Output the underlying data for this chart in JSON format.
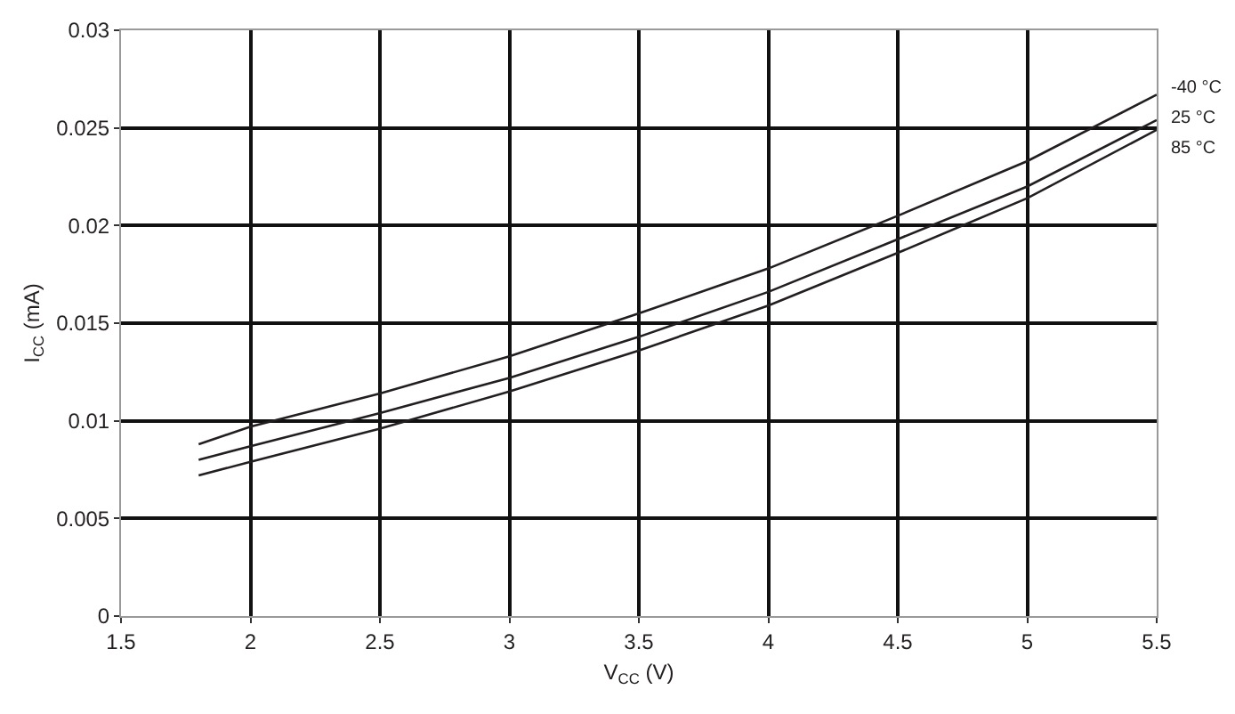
{
  "chart_data": {
    "type": "line",
    "xlabel": "V$_{CC}$ (V)",
    "ylabel": "I$_{CC}$ (mA)",
    "x": [
      1.8,
      2,
      2.5,
      3,
      3.5,
      4,
      4.5,
      5,
      5.5
    ],
    "series": [
      {
        "name": "-40 °C",
        "color": "#231f20",
        "values": [
          0.0088,
          0.0097,
          0.0114,
          0.0133,
          0.0155,
          0.0178,
          0.0205,
          0.0233,
          0.0267
        ]
      },
      {
        "name": "25 °C",
        "color": "#231f20",
        "values": [
          0.008,
          0.0087,
          0.0104,
          0.0122,
          0.0143,
          0.0166,
          0.0193,
          0.022,
          0.0254
        ]
      },
      {
        "name": "85 °C",
        "color": "#231f20",
        "values": [
          0.0072,
          0.0079,
          0.0096,
          0.0115,
          0.0136,
          0.0159,
          0.0186,
          0.0214,
          0.0249
        ]
      }
    ],
    "xlim": [
      1.5,
      5.5
    ],
    "xticks": [
      1.5,
      2,
      2.5,
      3,
      3.5,
      4,
      4.5,
      5,
      5.5
    ],
    "ylim": [
      0,
      0.03
    ],
    "yticks": [
      0,
      0.005,
      0.01,
      0.015,
      0.02,
      0.025,
      0.03
    ],
    "grid": true,
    "legend": false,
    "marker": "none",
    "line_style": "solid"
  }
}
